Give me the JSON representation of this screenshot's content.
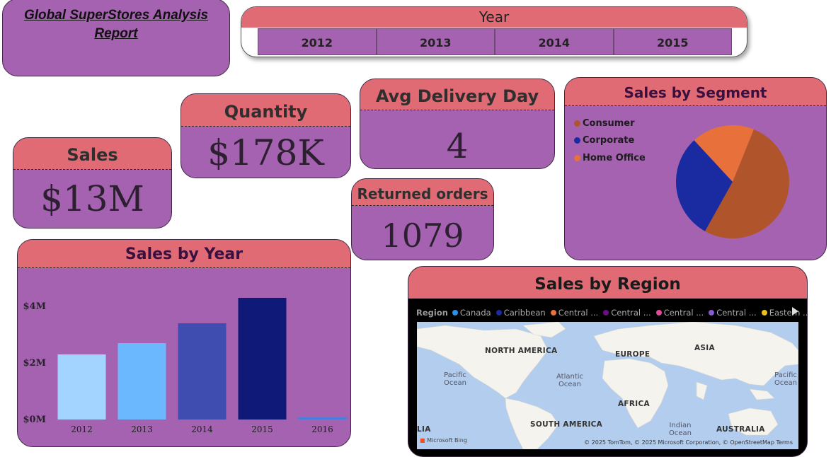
{
  "title": {
    "line1": "Global SuperStores Analysis ",
    "line2": "Report"
  },
  "year_slicer": {
    "label": "Year",
    "years": [
      "2012",
      "2013",
      "2014",
      "2015"
    ]
  },
  "kpis": {
    "sales": {
      "label": "Sales",
      "value": "$13M"
    },
    "quantity": {
      "label": "Quantity",
      "value": "$178K"
    },
    "avg_delivery": {
      "label": "Avg Delivery Day",
      "value": "4"
    },
    "returned": {
      "label": "Returned orders",
      "value": "1079"
    }
  },
  "segment": {
    "title": "Sales by Segment",
    "legend": [
      {
        "name": "Consumer",
        "color": "#b0552b"
      },
      {
        "name": "Corporate",
        "color": "#1a2aa0"
      },
      {
        "name": "Home Office",
        "color": "#e8703a"
      }
    ]
  },
  "region": {
    "title": "Sales by Region",
    "legend_label": "Region",
    "legend": [
      {
        "name": "Canada",
        "color": "#2a90e8"
      },
      {
        "name": "Caribbean",
        "color": "#1a2aa0"
      },
      {
        "name": "Central ...",
        "color": "#e8703a"
      },
      {
        "name": "Central ...",
        "color": "#6a0f80"
      },
      {
        "name": "Central ...",
        "color": "#e04b9a"
      },
      {
        "name": "Central ...",
        "color": "#8a5ad0"
      },
      {
        "name": "Eastern ...",
        "color": "#e8c020"
      }
    ],
    "map_labels": {
      "north_america": "NORTH AMERICA",
      "europe": "EUROPE",
      "asia": "ASIA",
      "africa": "AFRICA",
      "south_america": "SOUTH AMERICA",
      "australia": "AUSTRALIA",
      "pacific_left": "Pacific Ocean",
      "atlantic": "Atlantic Ocean",
      "indian": "Indian Ocean",
      "pacific_right": "Pacific Ocean",
      "edge_left": "LIA"
    },
    "attribution": "© 2025 TomTom, © 2025 Microsoft Corporation, © OpenStreetMap  Terms",
    "bing": "Microsoft Bing"
  },
  "chart_data": [
    {
      "type": "bar",
      "title": "Sales by Year",
      "categories": [
        "2012",
        "2013",
        "2014",
        "2015",
        "2016"
      ],
      "values": [
        2.3,
        2.7,
        3.4,
        4.3,
        0.03
      ],
      "colors": [
        "#a3d3ff",
        "#6bb8ff",
        "#3f4db0",
        "#0f1a78",
        "#4a7fe0"
      ],
      "y_ticks": [
        "$0M",
        "$2M",
        "$4M"
      ],
      "ylim": [
        0,
        4.5
      ],
      "xlabel": "",
      "ylabel": ""
    },
    {
      "type": "pie",
      "title": "Sales by Segment",
      "labels": [
        "Consumer",
        "Corporate",
        "Home Office"
      ],
      "values": [
        0.52,
        0.3,
        0.18
      ],
      "colors": [
        "#b0552b",
        "#1a2aa0",
        "#e8703a"
      ]
    }
  ]
}
